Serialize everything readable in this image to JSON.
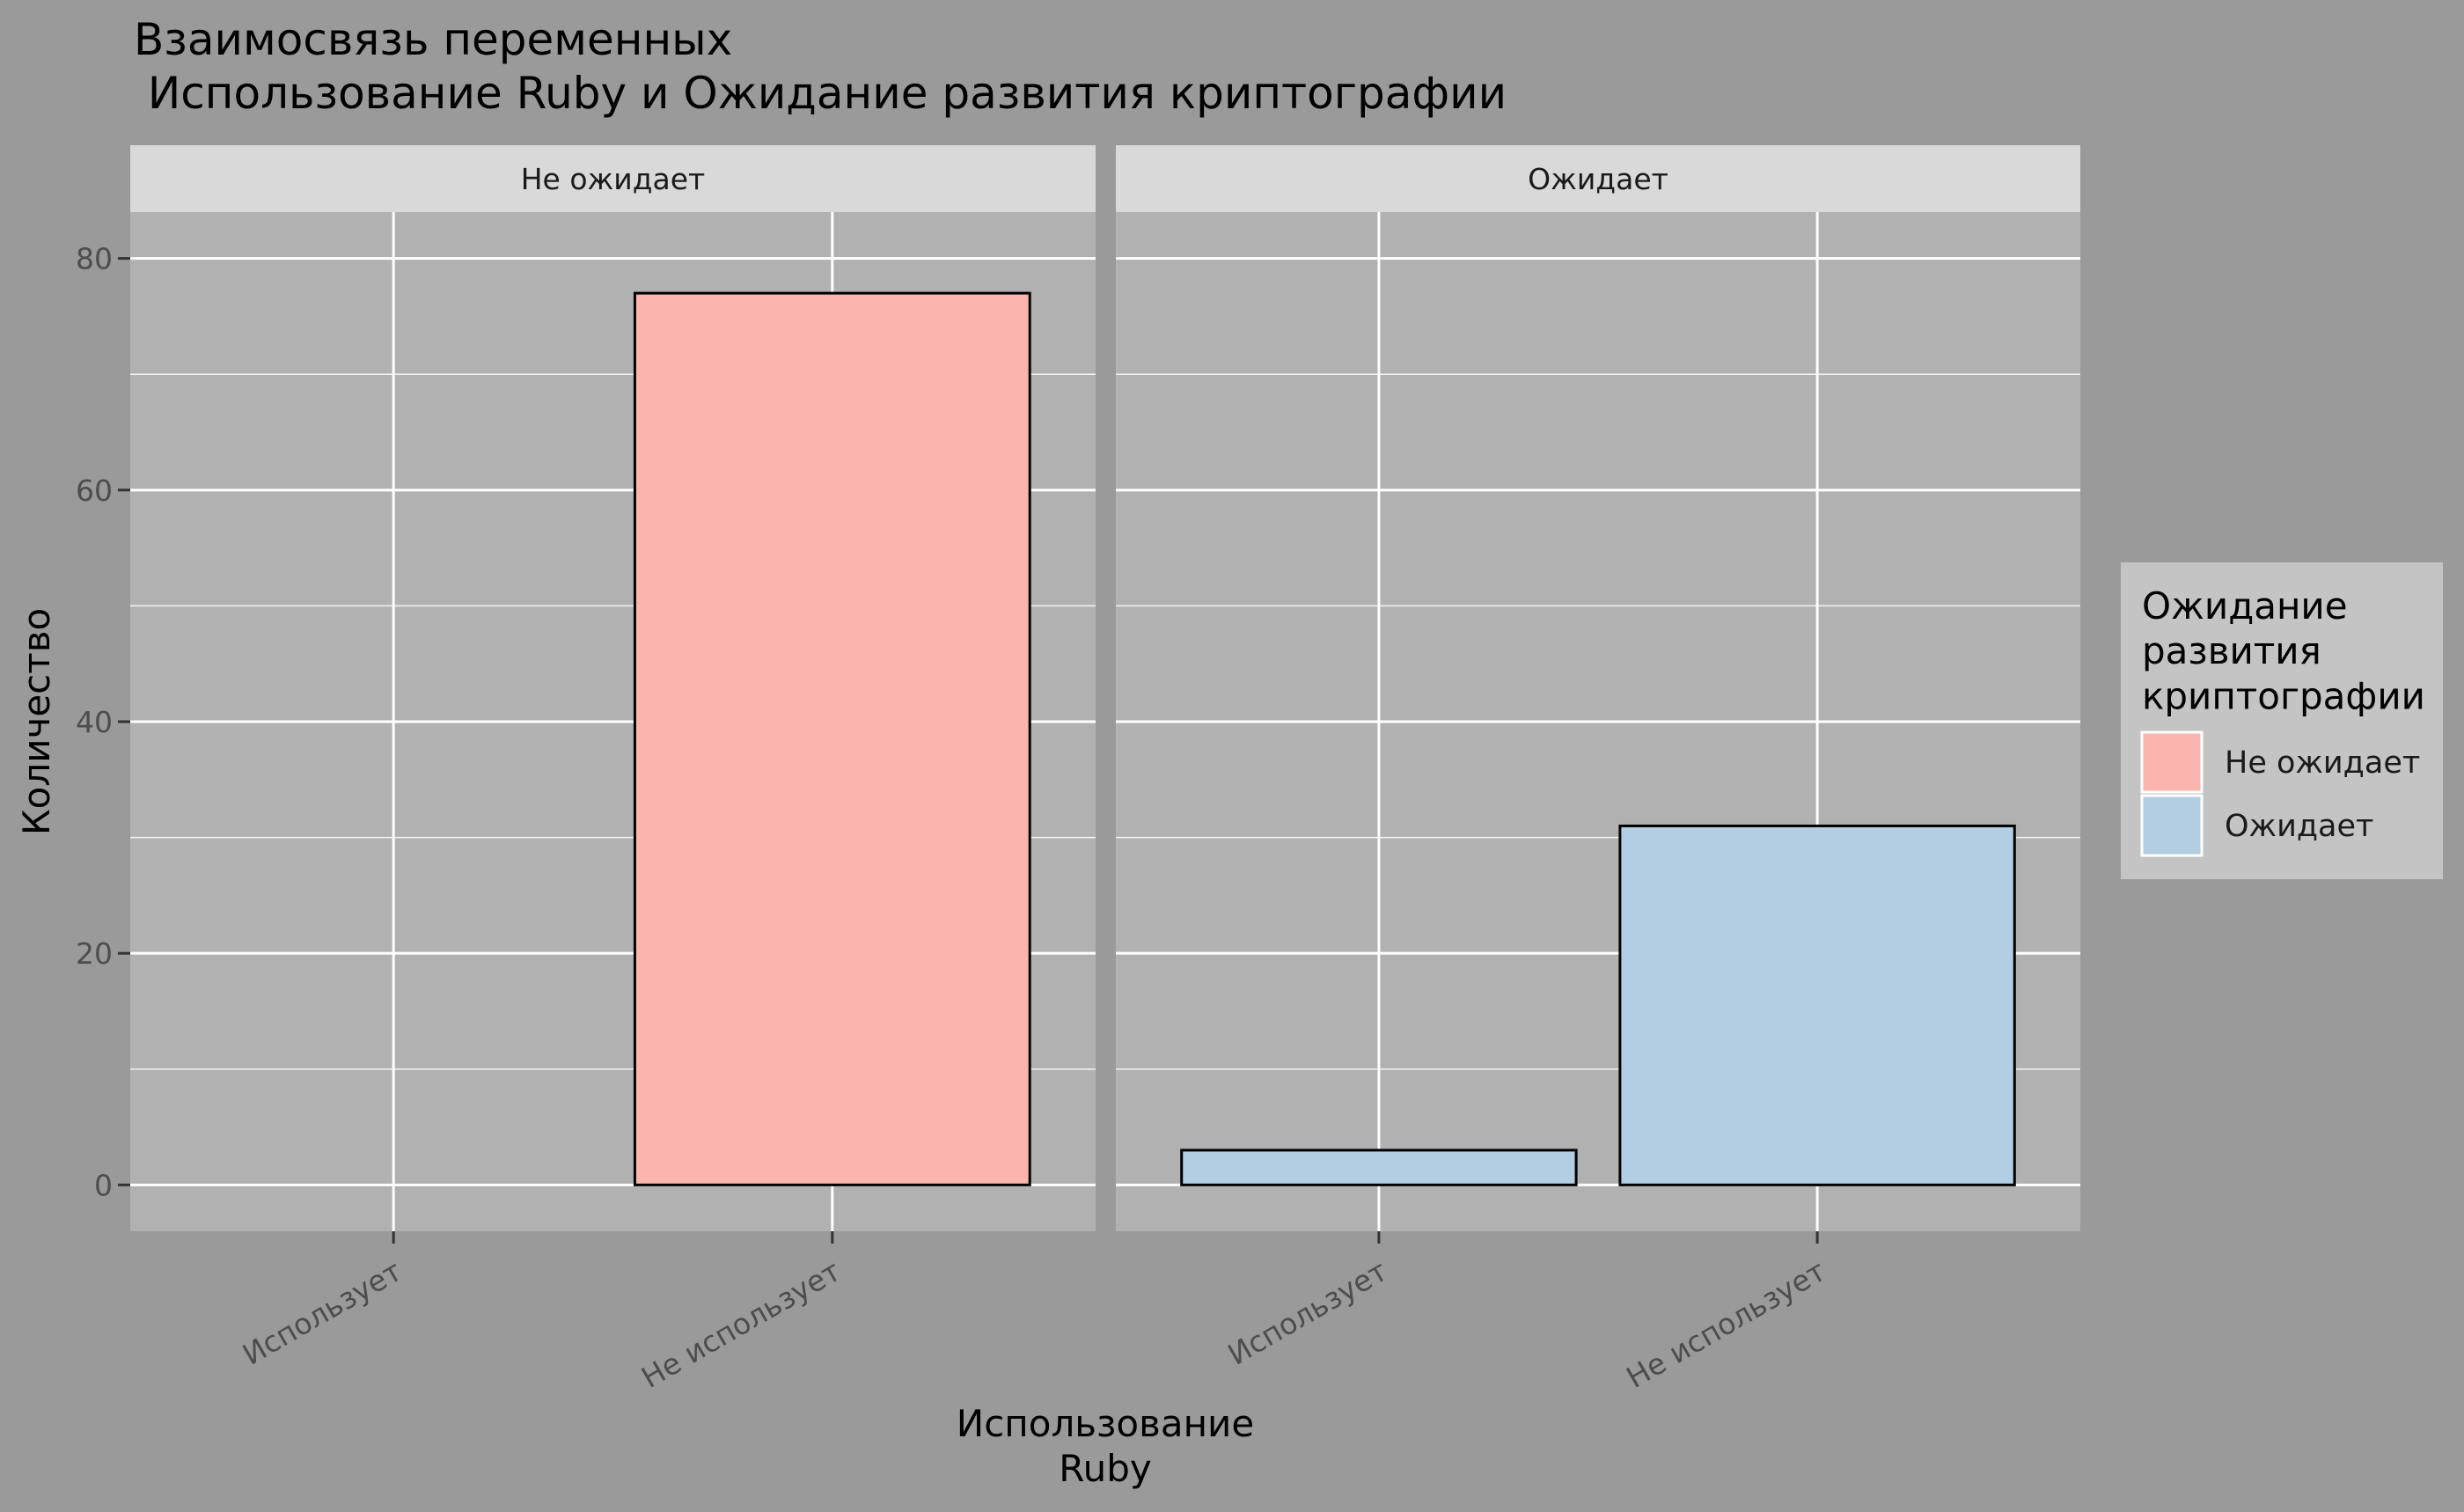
{
  "chart_data": {
    "type": "bar",
    "title": "Взаимосвязь переменных\n Использование Ruby и Ожидание развития криптографии",
    "xlabel": "Использование\nRuby",
    "ylabel": "Количество",
    "ylim": [
      -4,
      84
    ],
    "y_ticks": [
      0,
      20,
      40,
      60,
      80
    ],
    "categories": [
      "Использует",
      "Не использует"
    ],
    "facets": [
      {
        "label": "Не ожидает",
        "values": [
          0,
          77
        ],
        "series": "Не ожидает"
      },
      {
        "label": "Ожидает",
        "values": [
          3,
          31
        ],
        "series": "Ожидает"
      }
    ],
    "legend": {
      "title": "Ожидание\nразвития\nкриптографии",
      "position": "right",
      "items": [
        {
          "label": "Не ожидает",
          "color": "#fbb4ae"
        },
        {
          "label": "Ожидает",
          "color": "#b3cde3"
        }
      ]
    },
    "grid": true,
    "colors": {
      "background": "#9a9a9a",
      "panel": "#b1b1b1",
      "strip": "#d9d9d9",
      "legend_bg": "#c4c4c4",
      "grid": "#ffffff",
      "axis_text": "#4d4d4d",
      "bar_outline": "#000000"
    }
  }
}
